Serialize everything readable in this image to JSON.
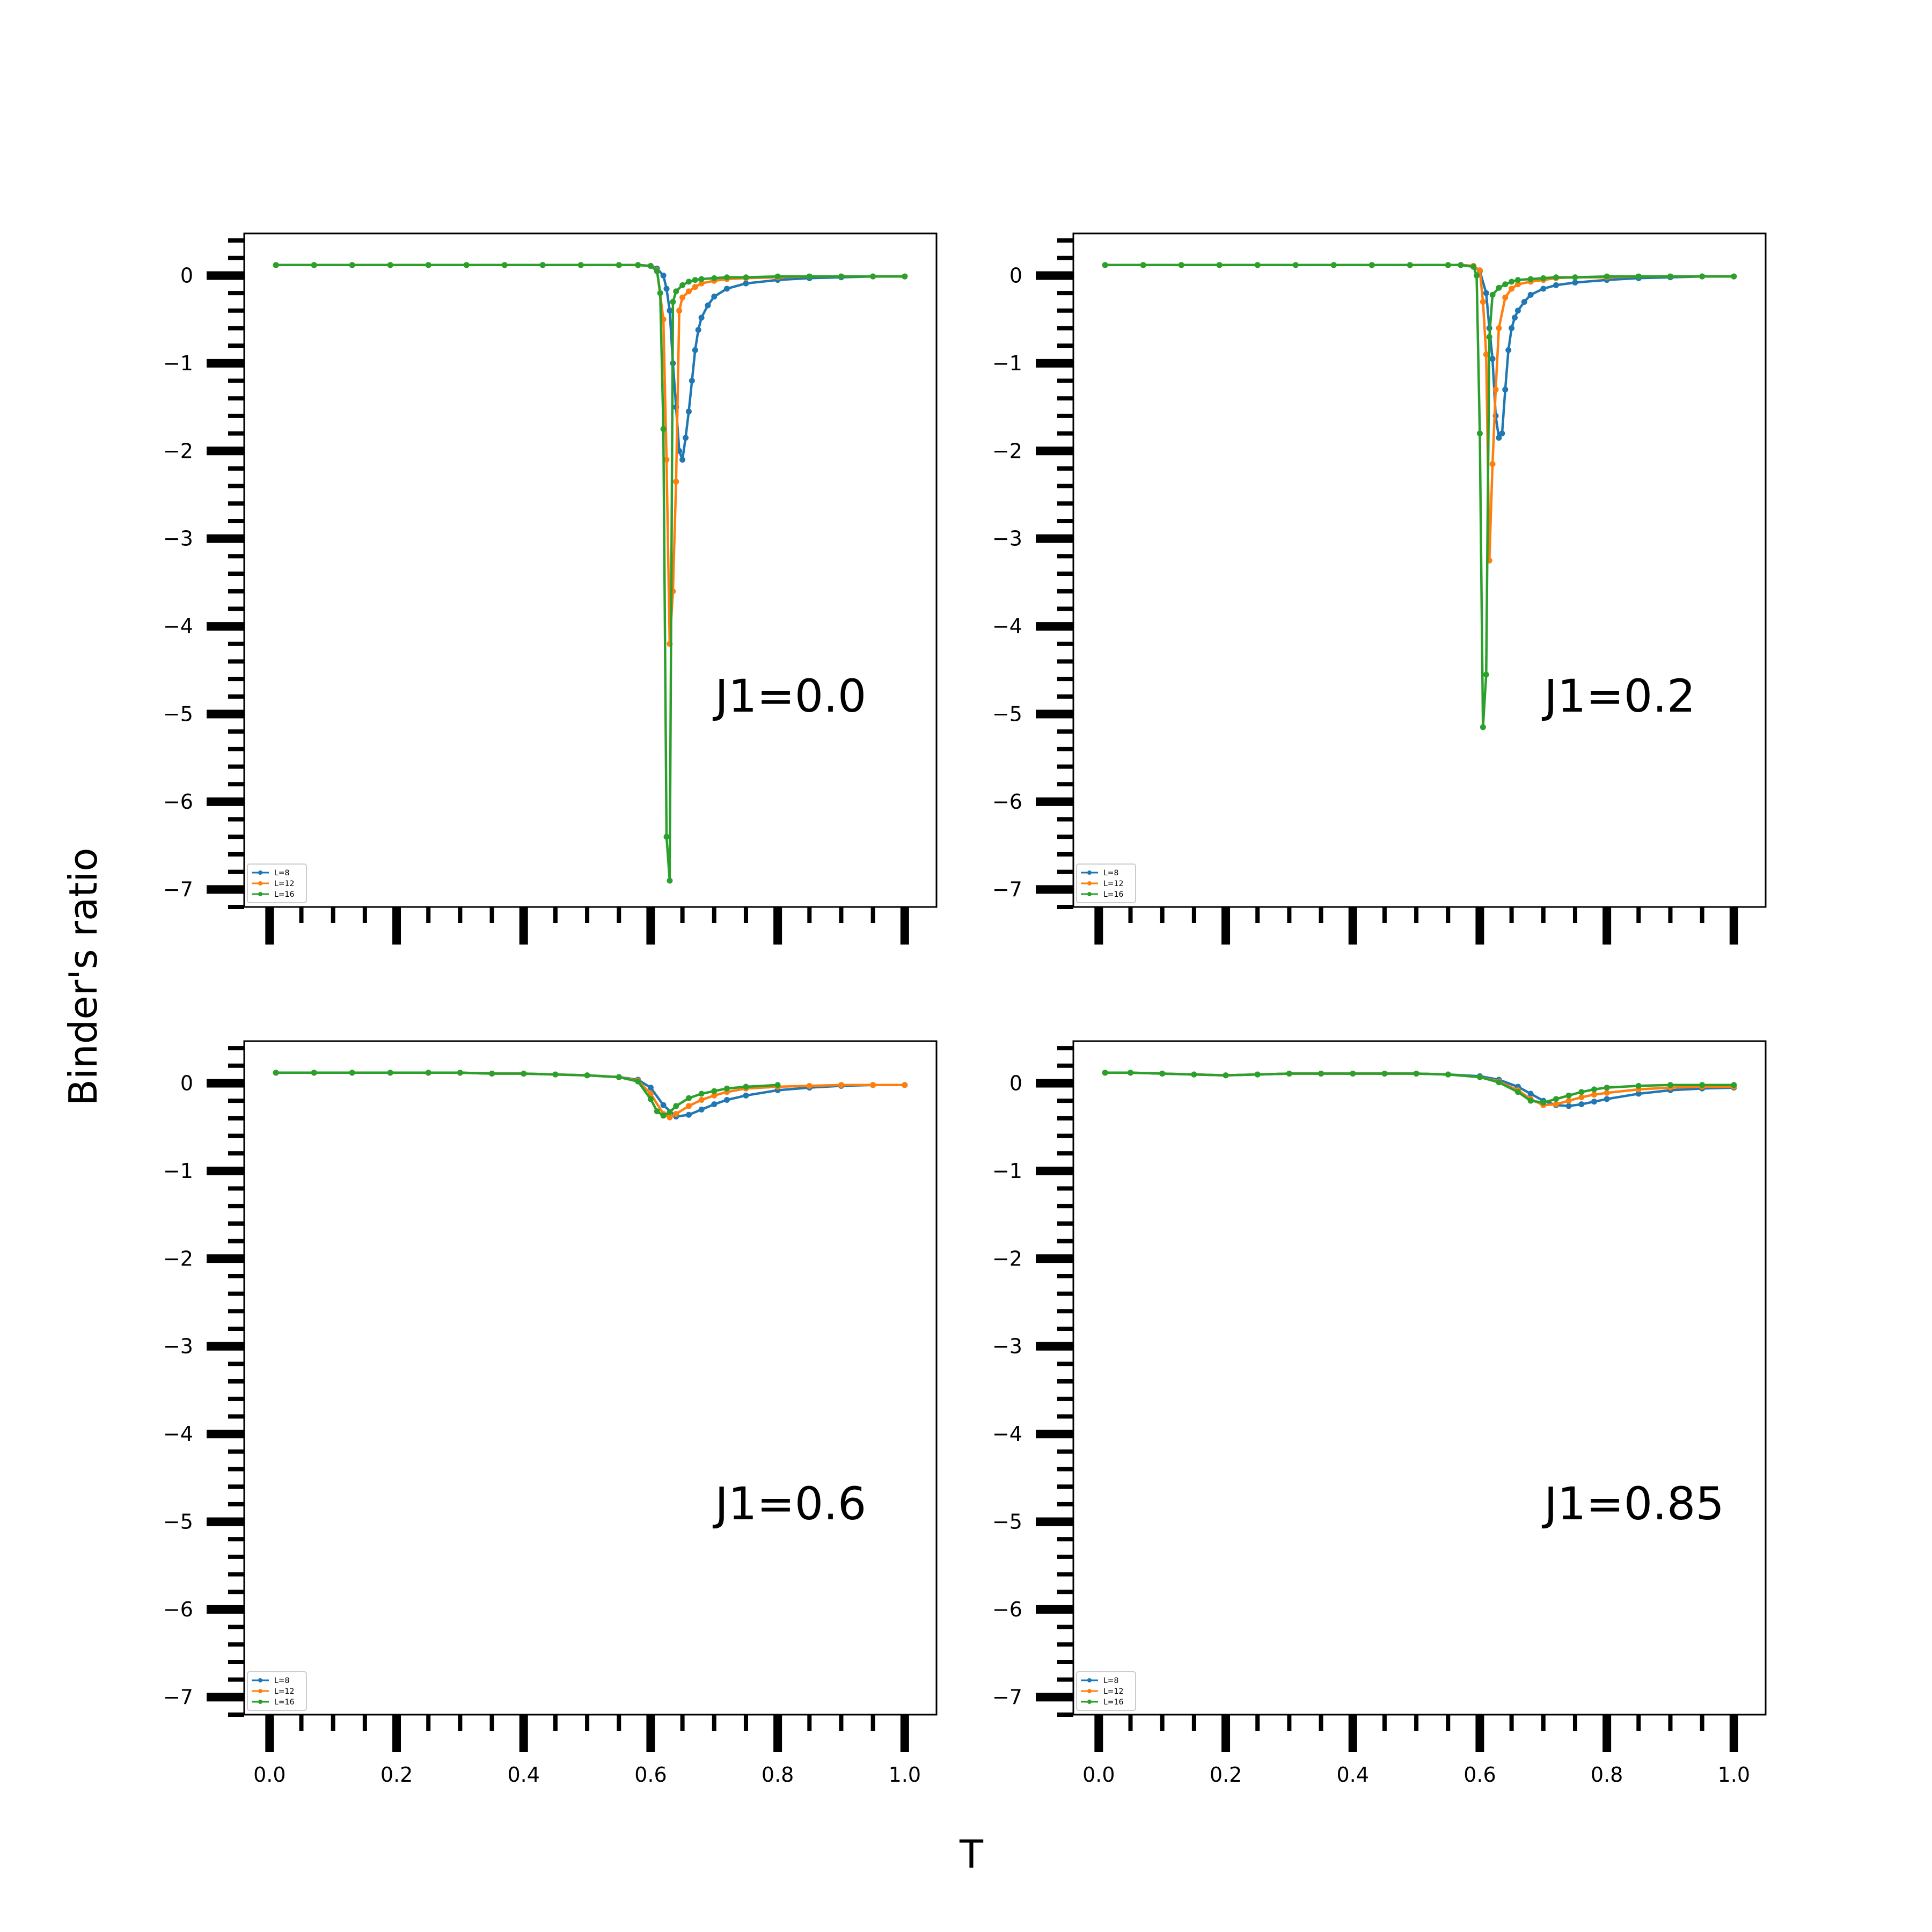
{
  "figure": {
    "xlabel": "T",
    "ylabel": "Binder's ratio"
  },
  "colors": {
    "L=8": "#1f77b4",
    "L=12": "#ff7f0e",
    "L=16": "#2ca02c"
  },
  "chart_data": [
    {
      "type": "line",
      "annotation": "J1=0.0",
      "xlim": [
        -0.04,
        1.05
      ],
      "ylim": [
        -7.2,
        0.48
      ],
      "yticks": [
        0,
        -1,
        -2,
        -3,
        -4,
        -5,
        -6,
        -7
      ],
      "xticks": [
        0.0,
        0.2,
        0.4,
        0.6,
        0.8,
        1.0
      ],
      "xticklabels_shown": false,
      "legend": "lower-left",
      "series": [
        {
          "name": "L=8",
          "color": "#1f77b4",
          "x": [
            0.01,
            0.07,
            0.13,
            0.19,
            0.25,
            0.31,
            0.37,
            0.43,
            0.49,
            0.55,
            0.58,
            0.6,
            0.61,
            0.62,
            0.625,
            0.63,
            0.635,
            0.64,
            0.645,
            0.65,
            0.655,
            0.66,
            0.665,
            0.67,
            0.675,
            0.68,
            0.69,
            0.7,
            0.72,
            0.75,
            0.8,
            0.85,
            0.9,
            0.95,
            1.0
          ],
          "y": [
            0.12,
            0.12,
            0.12,
            0.12,
            0.12,
            0.12,
            0.12,
            0.12,
            0.12,
            0.12,
            0.12,
            0.11,
            0.08,
            0.0,
            -0.15,
            -0.4,
            -1.0,
            -1.5,
            -2.0,
            -2.1,
            -1.85,
            -1.55,
            -1.2,
            -0.85,
            -0.62,
            -0.48,
            -0.34,
            -0.24,
            -0.15,
            -0.09,
            -0.05,
            -0.03,
            -0.02,
            -0.01,
            -0.01
          ]
        },
        {
          "name": "L=12",
          "color": "#ff7f0e",
          "x": [
            0.01,
            0.07,
            0.13,
            0.19,
            0.25,
            0.31,
            0.37,
            0.43,
            0.49,
            0.55,
            0.58,
            0.6,
            0.61,
            0.62,
            0.625,
            0.63,
            0.635,
            0.64,
            0.645,
            0.65,
            0.66,
            0.67,
            0.68,
            0.7,
            0.72,
            0.75,
            0.8,
            0.85,
            0.9,
            0.95,
            1.0
          ],
          "y": [
            0.12,
            0.12,
            0.12,
            0.12,
            0.12,
            0.12,
            0.12,
            0.12,
            0.12,
            0.12,
            0.12,
            0.11,
            0.06,
            -0.5,
            -2.1,
            -4.2,
            -3.6,
            -2.35,
            -0.4,
            -0.25,
            -0.18,
            -0.13,
            -0.09,
            -0.06,
            -0.04,
            -0.03,
            -0.02,
            -0.01,
            -0.01,
            -0.01,
            -0.01
          ]
        },
        {
          "name": "L=16",
          "color": "#2ca02c",
          "x": [
            0.01,
            0.07,
            0.13,
            0.19,
            0.25,
            0.31,
            0.37,
            0.43,
            0.49,
            0.55,
            0.58,
            0.6,
            0.61,
            0.615,
            0.62,
            0.625,
            0.63,
            0.635,
            0.64,
            0.65,
            0.66,
            0.67,
            0.68,
            0.7,
            0.72,
            0.75,
            0.8,
            0.85,
            0.9,
            0.95,
            1.0
          ],
          "y": [
            0.12,
            0.12,
            0.12,
            0.12,
            0.12,
            0.12,
            0.12,
            0.12,
            0.12,
            0.12,
            0.12,
            0.11,
            0.05,
            -0.2,
            -1.75,
            -6.4,
            -6.9,
            -0.3,
            -0.18,
            -0.11,
            -0.07,
            -0.05,
            -0.04,
            -0.03,
            -0.02,
            -0.02,
            -0.01,
            -0.01,
            -0.01,
            -0.01,
            -0.01
          ]
        }
      ]
    },
    {
      "type": "line",
      "annotation": "J1=0.2",
      "xlim": [
        -0.04,
        1.05
      ],
      "ylim": [
        -7.2,
        0.48
      ],
      "yticks": [
        0,
        -1,
        -2,
        -3,
        -4,
        -5,
        -6,
        -7
      ],
      "xticks": [
        0.0,
        0.2,
        0.4,
        0.6,
        0.8,
        1.0
      ],
      "xticklabels_shown": false,
      "legend": "lower-left",
      "series": [
        {
          "name": "L=8",
          "color": "#1f77b4",
          "x": [
            0.01,
            0.07,
            0.13,
            0.19,
            0.25,
            0.31,
            0.37,
            0.43,
            0.49,
            0.55,
            0.57,
            0.59,
            0.6,
            0.61,
            0.615,
            0.62,
            0.625,
            0.63,
            0.635,
            0.64,
            0.645,
            0.65,
            0.655,
            0.66,
            0.67,
            0.68,
            0.7,
            0.72,
            0.75,
            0.8,
            0.85,
            0.9,
            0.95,
            1.0
          ],
          "y": [
            0.12,
            0.12,
            0.12,
            0.12,
            0.12,
            0.12,
            0.12,
            0.12,
            0.12,
            0.12,
            0.12,
            0.11,
            0.05,
            -0.2,
            -0.6,
            -0.95,
            -1.6,
            -1.85,
            -1.8,
            -1.3,
            -0.85,
            -0.6,
            -0.48,
            -0.4,
            -0.3,
            -0.22,
            -0.15,
            -0.11,
            -0.08,
            -0.05,
            -0.03,
            -0.02,
            -0.01,
            -0.01
          ]
        },
        {
          "name": "L=12",
          "color": "#ff7f0e",
          "x": [
            0.01,
            0.07,
            0.13,
            0.19,
            0.25,
            0.31,
            0.37,
            0.43,
            0.49,
            0.55,
            0.57,
            0.59,
            0.6,
            0.605,
            0.61,
            0.615,
            0.62,
            0.625,
            0.63,
            0.64,
            0.65,
            0.66,
            0.68,
            0.7,
            0.72,
            0.75,
            0.8,
            0.85,
            0.9,
            0.95,
            1.0
          ],
          "y": [
            0.12,
            0.12,
            0.12,
            0.12,
            0.12,
            0.12,
            0.12,
            0.12,
            0.12,
            0.12,
            0.12,
            0.11,
            0.06,
            -0.3,
            -0.9,
            -3.25,
            -2.15,
            -1.3,
            -0.6,
            -0.25,
            -0.15,
            -0.1,
            -0.07,
            -0.05,
            -0.03,
            -0.02,
            -0.02,
            -0.01,
            -0.01,
            -0.01,
            -0.01
          ]
        },
        {
          "name": "L=16",
          "color": "#2ca02c",
          "x": [
            0.01,
            0.07,
            0.13,
            0.19,
            0.25,
            0.31,
            0.37,
            0.43,
            0.49,
            0.55,
            0.57,
            0.59,
            0.595,
            0.6,
            0.605,
            0.61,
            0.615,
            0.62,
            0.63,
            0.64,
            0.65,
            0.66,
            0.68,
            0.7,
            0.72,
            0.75,
            0.8,
            0.85,
            0.9,
            0.95,
            1.0
          ],
          "y": [
            0.12,
            0.12,
            0.12,
            0.12,
            0.12,
            0.12,
            0.12,
            0.12,
            0.12,
            0.12,
            0.12,
            0.1,
            0.0,
            -1.8,
            -5.15,
            -4.55,
            -0.7,
            -0.22,
            -0.14,
            -0.1,
            -0.07,
            -0.05,
            -0.04,
            -0.03,
            -0.02,
            -0.02,
            -0.01,
            -0.01,
            -0.01,
            -0.01,
            -0.01
          ]
        }
      ]
    },
    {
      "type": "line",
      "annotation": "J1=0.6",
      "xlim": [
        -0.04,
        1.05
      ],
      "ylim": [
        -7.2,
        0.48
      ],
      "yticks": [
        0,
        -1,
        -2,
        -3,
        -4,
        -5,
        -6,
        -7
      ],
      "xticks": [
        0.0,
        0.2,
        0.4,
        0.6,
        0.8,
        1.0
      ],
      "xticklabels_shown": true,
      "legend": "lower-left",
      "series": [
        {
          "name": "L=8",
          "color": "#1f77b4",
          "x": [
            0.01,
            0.07,
            0.13,
            0.19,
            0.25,
            0.3,
            0.35,
            0.4,
            0.45,
            0.5,
            0.55,
            0.58,
            0.6,
            0.62,
            0.64,
            0.66,
            0.68,
            0.7,
            0.72,
            0.75,
            0.8,
            0.85,
            0.9,
            0.95,
            1.0
          ],
          "y": [
            0.12,
            0.12,
            0.12,
            0.12,
            0.12,
            0.12,
            0.11,
            0.11,
            0.1,
            0.09,
            0.07,
            0.04,
            -0.05,
            -0.25,
            -0.38,
            -0.36,
            -0.3,
            -0.24,
            -0.19,
            -0.14,
            -0.08,
            -0.05,
            -0.03,
            -0.02,
            -0.02
          ]
        },
        {
          "name": "L=12",
          "color": "#ff7f0e",
          "x": [
            0.01,
            0.07,
            0.13,
            0.19,
            0.25,
            0.3,
            0.35,
            0.4,
            0.45,
            0.5,
            0.55,
            0.58,
            0.6,
            0.62,
            0.63,
            0.64,
            0.66,
            0.68,
            0.7,
            0.72,
            0.75,
            0.8,
            0.85,
            0.9,
            0.95,
            1.0
          ],
          "y": [
            0.12,
            0.12,
            0.12,
            0.12,
            0.12,
            0.12,
            0.11,
            0.11,
            0.1,
            0.09,
            0.07,
            0.03,
            -0.12,
            -0.35,
            -0.39,
            -0.35,
            -0.26,
            -0.19,
            -0.14,
            -0.1,
            -0.06,
            -0.04,
            -0.03,
            -0.02,
            -0.02,
            -0.02
          ]
        },
        {
          "name": "L=16",
          "color": "#2ca02c",
          "x": [
            0.01,
            0.07,
            0.13,
            0.19,
            0.25,
            0.3,
            0.35,
            0.4,
            0.45,
            0.5,
            0.55,
            0.58,
            0.6,
            0.61,
            0.62,
            0.63,
            0.64,
            0.66,
            0.68,
            0.7,
            0.72,
            0.75,
            0.8
          ],
          "y": [
            0.12,
            0.12,
            0.12,
            0.12,
            0.12,
            0.12,
            0.11,
            0.11,
            0.1,
            0.09,
            0.07,
            0.02,
            -0.18,
            -0.32,
            -0.37,
            -0.33,
            -0.26,
            -0.17,
            -0.12,
            -0.09,
            -0.06,
            -0.04,
            -0.02
          ]
        }
      ]
    },
    {
      "type": "line",
      "annotation": "J1=0.85",
      "xlim": [
        -0.04,
        1.05
      ],
      "ylim": [
        -7.2,
        0.48
      ],
      "yticks": [
        0,
        -1,
        -2,
        -3,
        -4,
        -5,
        -6,
        -7
      ],
      "xticks": [
        0.0,
        0.2,
        0.4,
        0.6,
        0.8,
        1.0
      ],
      "xticklabels_shown": true,
      "legend": "lower-left",
      "series": [
        {
          "name": "L=8",
          "color": "#1f77b4",
          "x": [
            0.01,
            0.05,
            0.1,
            0.15,
            0.2,
            0.25,
            0.3,
            0.35,
            0.4,
            0.45,
            0.5,
            0.55,
            0.6,
            0.63,
            0.66,
            0.68,
            0.7,
            0.72,
            0.74,
            0.76,
            0.78,
            0.8,
            0.85,
            0.9,
            0.95,
            1.0
          ],
          "y": [
            0.12,
            0.12,
            0.11,
            0.1,
            0.09,
            0.1,
            0.11,
            0.11,
            0.11,
            0.11,
            0.11,
            0.1,
            0.08,
            0.04,
            -0.04,
            -0.12,
            -0.2,
            -0.25,
            -0.26,
            -0.24,
            -0.21,
            -0.18,
            -0.12,
            -0.08,
            -0.06,
            -0.05
          ]
        },
        {
          "name": "L=12",
          "color": "#ff7f0e",
          "x": [
            0.01,
            0.05,
            0.1,
            0.15,
            0.2,
            0.25,
            0.3,
            0.35,
            0.4,
            0.45,
            0.5,
            0.55,
            0.6,
            0.63,
            0.66,
            0.68,
            0.7,
            0.72,
            0.74,
            0.76,
            0.78,
            0.8,
            0.85,
            0.9,
            0.95,
            1.0
          ],
          "y": [
            0.12,
            0.12,
            0.11,
            0.1,
            0.09,
            0.1,
            0.11,
            0.11,
            0.11,
            0.11,
            0.11,
            0.1,
            0.07,
            0.02,
            -0.08,
            -0.18,
            -0.25,
            -0.24,
            -0.2,
            -0.16,
            -0.13,
            -0.11,
            -0.07,
            -0.05,
            -0.04,
            -0.04
          ]
        },
        {
          "name": "L=16",
          "color": "#2ca02c",
          "x": [
            0.01,
            0.05,
            0.1,
            0.15,
            0.2,
            0.25,
            0.3,
            0.35,
            0.4,
            0.45,
            0.5,
            0.55,
            0.6,
            0.63,
            0.66,
            0.68,
            0.7,
            0.72,
            0.74,
            0.76,
            0.78,
            0.8,
            0.85,
            0.9,
            0.95,
            1.0
          ],
          "y": [
            0.12,
            0.12,
            0.11,
            0.1,
            0.09,
            0.1,
            0.11,
            0.11,
            0.11,
            0.11,
            0.11,
            0.1,
            0.07,
            0.01,
            -0.1,
            -0.2,
            -0.22,
            -0.18,
            -0.14,
            -0.1,
            -0.07,
            -0.05,
            -0.03,
            -0.02,
            -0.02,
            -0.02
          ]
        }
      ]
    }
  ]
}
